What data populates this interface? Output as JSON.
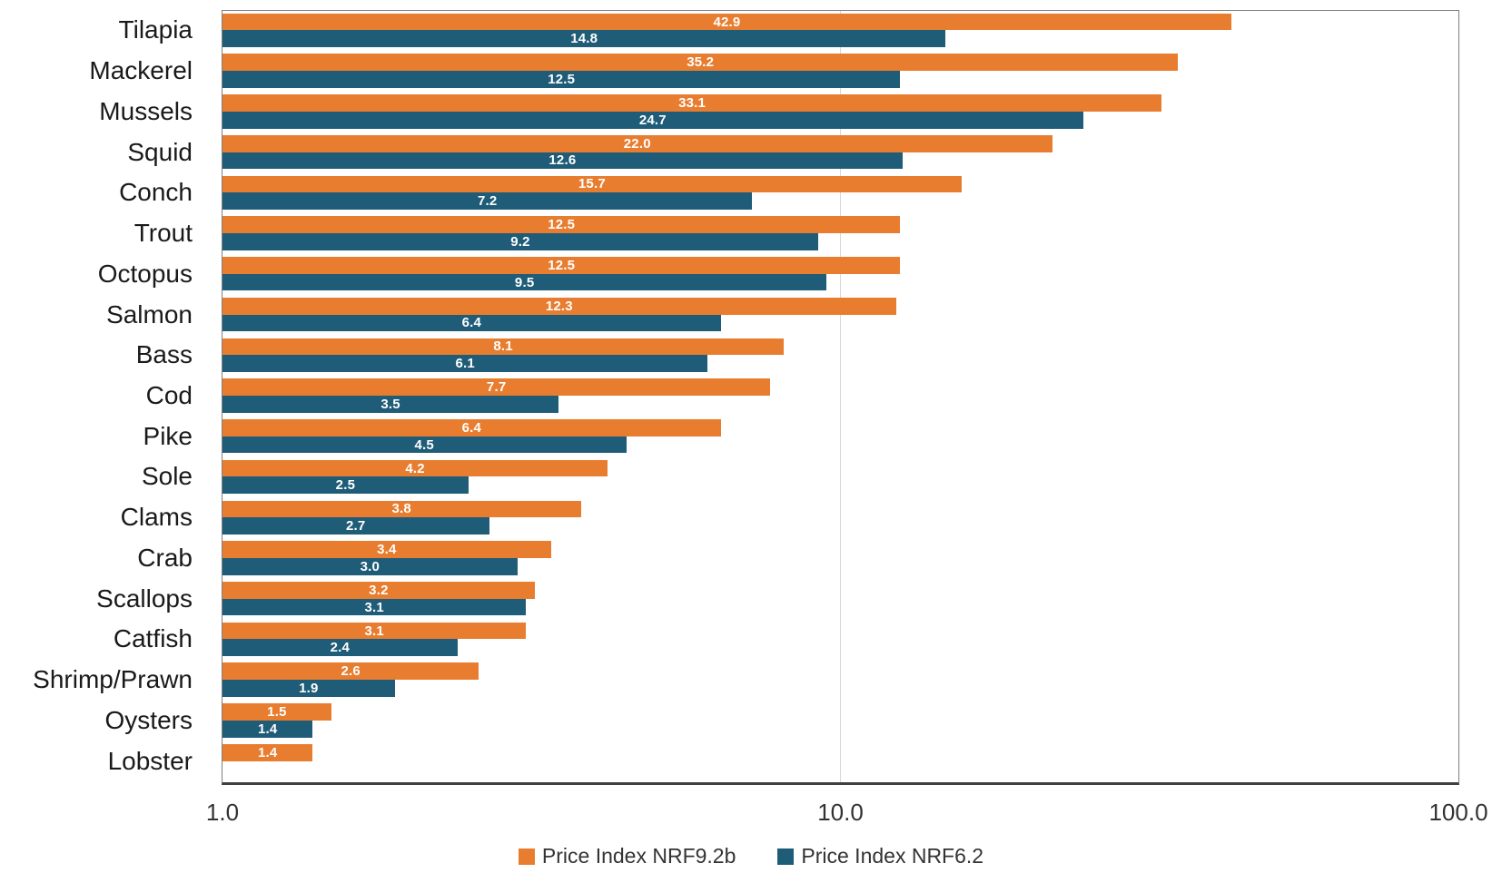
{
  "chart_data": {
    "type": "bar",
    "orientation": "horizontal",
    "x_scale": "log10",
    "xlim": [
      1,
      100
    ],
    "x_ticks": [
      "1.0",
      "10.0",
      "100.0"
    ],
    "grid": "vertical gridline at each decade (10.0), light gray",
    "legend_position": "bottom-center",
    "categories": [
      "Tilapia",
      "Mackerel",
      "Mussels",
      "Squid",
      "Conch",
      "Trout",
      "Octopus",
      "Salmon",
      "Bass",
      "Cod",
      "Pike",
      "Sole",
      "Clams",
      "Crab",
      "Scallops",
      "Catfish",
      "Shrimp/Prawn",
      "Oysters",
      "Lobster"
    ],
    "series": [
      {
        "name": "Price Index NRF9.2b",
        "color": "#e87d30",
        "values": [
          42.9,
          35.2,
          33.1,
          22.0,
          15.7,
          12.5,
          12.5,
          12.3,
          8.1,
          7.7,
          6.4,
          4.2,
          3.8,
          3.4,
          3.2,
          3.1,
          2.6,
          1.5,
          1.4
        ]
      },
      {
        "name": "Price Index NRF6.2",
        "color": "#1f5c78",
        "values": [
          14.8,
          12.5,
          24.7,
          12.6,
          7.2,
          9.2,
          9.5,
          6.4,
          6.1,
          3.5,
          4.5,
          2.5,
          2.7,
          3.0,
          3.1,
          2.4,
          1.9,
          1.4,
          null
        ]
      }
    ],
    "data_label_format": "one decimal, white bold, centered inside bar",
    "colors": {
      "axis_line": "#3f3f3f",
      "plot_border": "#7f7f7f",
      "gridline": "#d9d9d9",
      "category_text": "#1a1a1a",
      "tick_text": "#333333",
      "legend_text": "#333333"
    }
  }
}
